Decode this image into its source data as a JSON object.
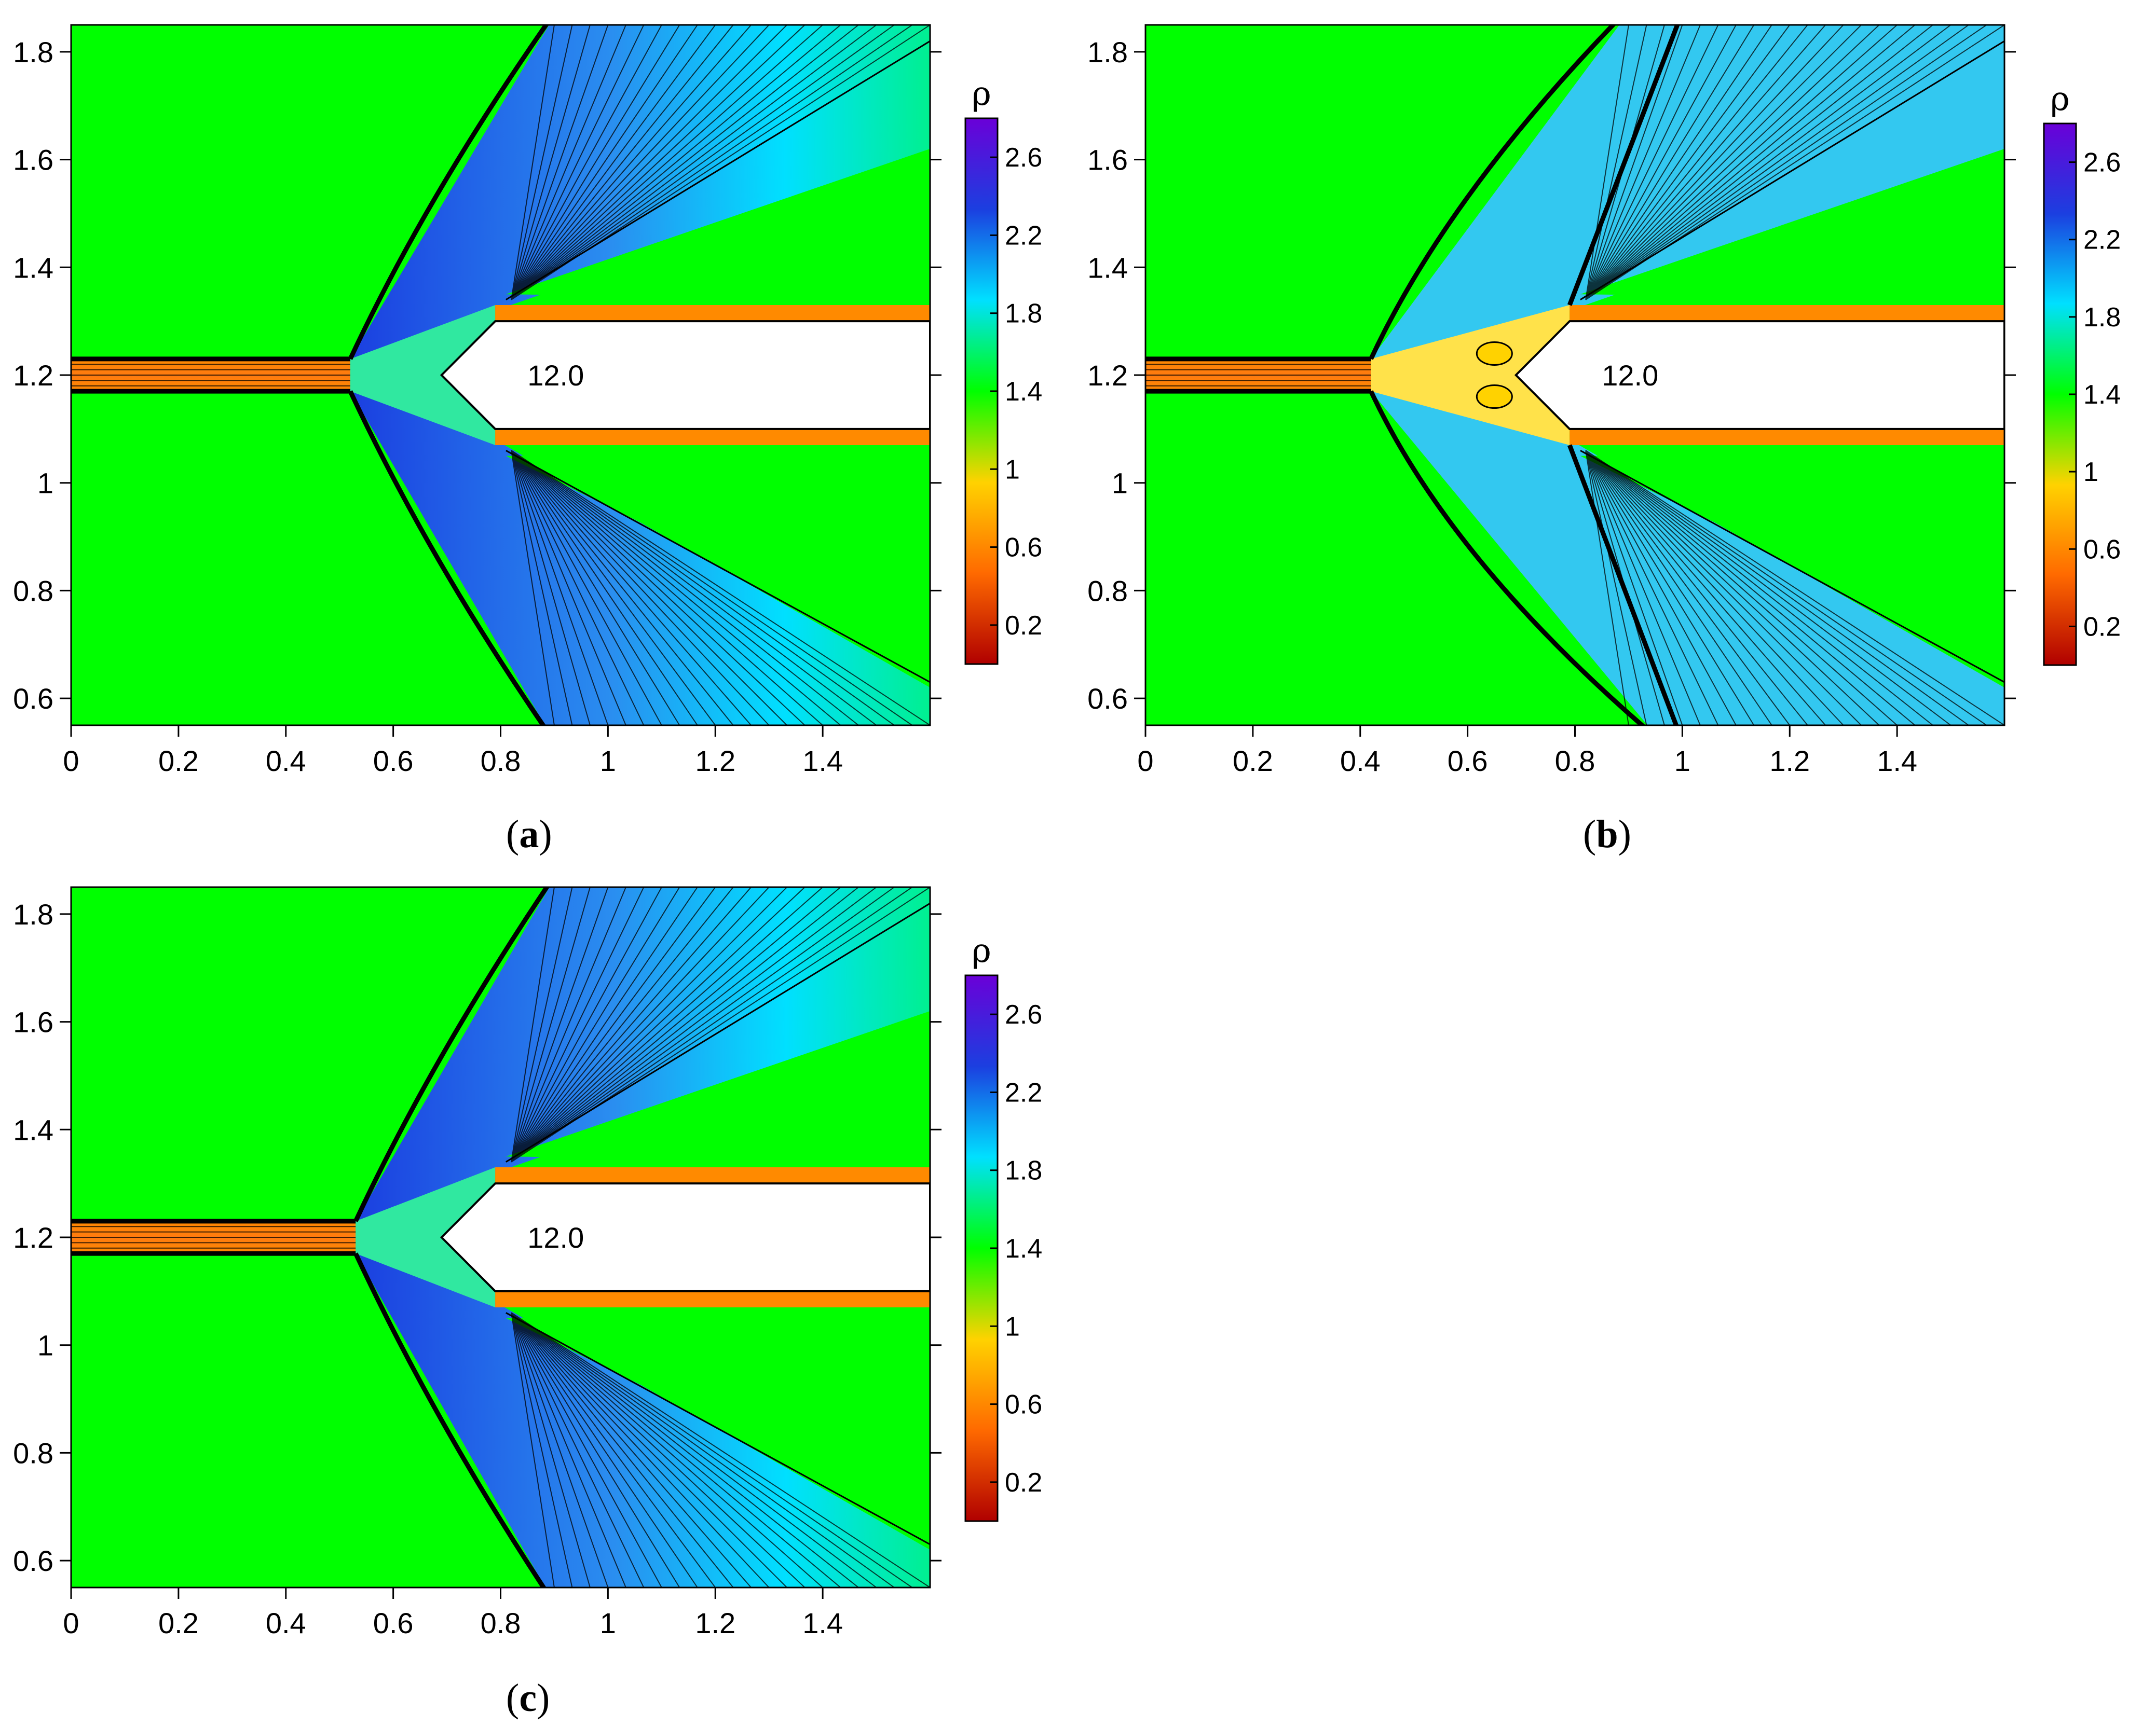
{
  "chart_data": [
    {
      "type": "heatmap",
      "panel_label": "a",
      "xlim": [
        0,
        1.6
      ],
      "ylim": [
        0.55,
        1.85
      ],
      "x_ticks": [
        "0",
        "0.2",
        "0.4",
        "0.6",
        "0.8",
        "1",
        "1.2",
        "1.4"
      ],
      "y_ticks": [
        "0.6",
        "0.8",
        "1",
        "1.2",
        "1.4",
        "1.6",
        "1.8"
      ],
      "colorbar": {
        "title": "ρ",
        "range": [
          0,
          2.8
        ],
        "ticks": [
          "0.2",
          "0.6",
          "1",
          "1.4",
          "1.8",
          "2.2",
          "2.6"
        ],
        "colors": [
          "#b00000",
          "#ff6a00",
          "#ffd200",
          "#00ff00",
          "#00e0ff",
          "#1b3fe0",
          "#6a00d8"
        ]
      },
      "annotation": "12.0",
      "jet_half_width": 0.03,
      "jet_y": 1.2,
      "shock_apex_x": 0.52,
      "body": {
        "nose_x": 0.69,
        "shoulder_x": 0.79,
        "y_top": 1.3,
        "y_bottom": 1.1
      }
    },
    {
      "type": "heatmap",
      "panel_label": "b",
      "xlim": [
        0,
        1.6
      ],
      "ylim": [
        0.55,
        1.85
      ],
      "x_ticks": [
        "0",
        "0.2",
        "0.4",
        "0.6",
        "0.8",
        "1",
        "1.2",
        "1.4"
      ],
      "y_ticks": [
        "0.6",
        "0.8",
        "1",
        "1.2",
        "1.4",
        "1.6",
        "1.8"
      ],
      "colorbar": {
        "title": "ρ",
        "range": [
          0,
          2.8
        ],
        "ticks": [
          "0.2",
          "0.6",
          "1",
          "1.4",
          "1.8",
          "2.2",
          "2.6"
        ],
        "colors": [
          "#b00000",
          "#ff6a00",
          "#ffd200",
          "#00ff00",
          "#00e0ff",
          "#1b3fe0",
          "#6a00d8"
        ]
      },
      "annotation": "12.0",
      "jet_half_width": 0.03,
      "jet_y": 1.2,
      "shock_apex_x": 0.42,
      "body": {
        "nose_x": 0.69,
        "shoulder_x": 0.79,
        "y_top": 1.3,
        "y_bottom": 1.1
      }
    },
    {
      "type": "heatmap",
      "panel_label": "c",
      "xlim": [
        0,
        1.6
      ],
      "ylim": [
        0.55,
        1.85
      ],
      "x_ticks": [
        "0",
        "0.2",
        "0.4",
        "0.6",
        "0.8",
        "1",
        "1.2",
        "1.4"
      ],
      "y_ticks": [
        "0.6",
        "0.8",
        "1",
        "1.2",
        "1.4",
        "1.6",
        "1.8"
      ],
      "colorbar": {
        "title": "ρ",
        "range": [
          0,
          2.8
        ],
        "ticks": [
          "0.2",
          "0.6",
          "1",
          "1.4",
          "1.8",
          "2.2",
          "2.6"
        ],
        "colors": [
          "#b00000",
          "#ff6a00",
          "#ffd200",
          "#00ff00",
          "#00e0ff",
          "#1b3fe0",
          "#6a00d8"
        ]
      },
      "annotation": "12.0",
      "jet_half_width": 0.03,
      "jet_y": 1.2,
      "shock_apex_x": 0.53,
      "body": {
        "nose_x": 0.69,
        "shoulder_x": 0.79,
        "y_top": 1.3,
        "y_bottom": 1.1
      }
    }
  ],
  "captions": [
    {
      "open": "(",
      "letter": "a",
      "close": ")"
    },
    {
      "open": "(",
      "letter": "b",
      "close": ")"
    },
    {
      "open": "(",
      "letter": "c",
      "close": ")"
    }
  ]
}
